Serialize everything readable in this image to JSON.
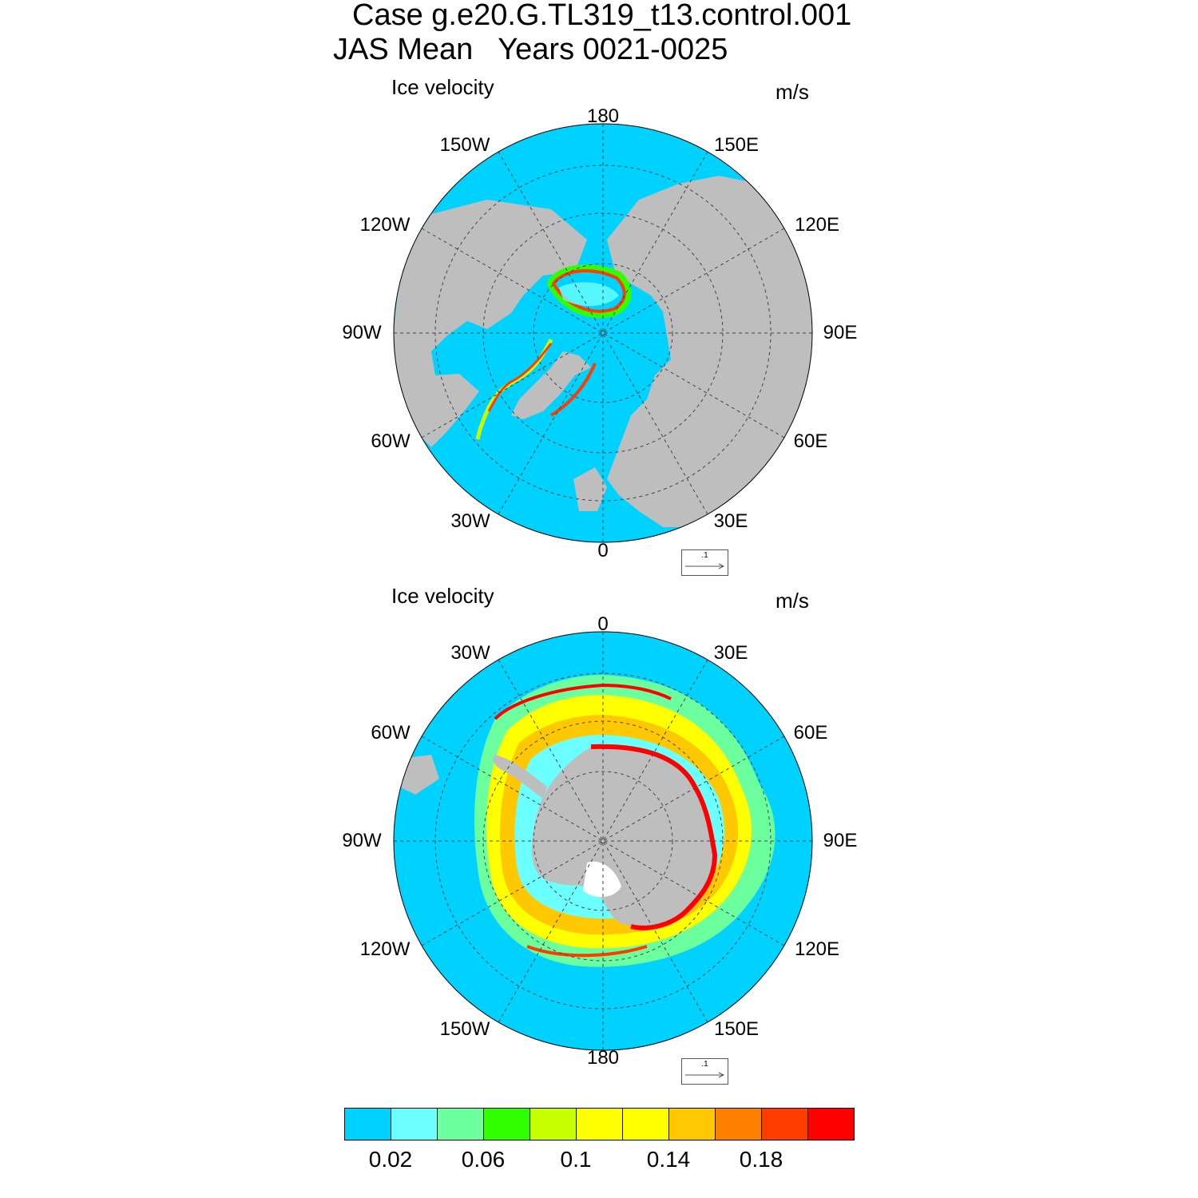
{
  "title": {
    "line1": "Case g.e20.G.TL319_t13.control.001",
    "line2": "JAS Mean   Years 0021-0025"
  },
  "panels": [
    {
      "label": "Ice velocity",
      "units": "m/s",
      "hemisphere": "north",
      "lon_labels": {
        "top": "180",
        "top_right": "150E",
        "right_upper": "120E",
        "right": "90E",
        "right_lower": "60E",
        "bottom_right": "30E",
        "bottom": "0",
        "bottom_left": "30W",
        "left_lower": "60W",
        "left": "90W",
        "left_upper": "120W",
        "top_left": "150W"
      },
      "ref_vector": ".1"
    },
    {
      "label": "Ice velocity",
      "units": "m/s",
      "hemisphere": "south",
      "lon_labels": {
        "top": "0",
        "top_right": "30E",
        "right_upper": "60E",
        "right": "90E",
        "right_lower": "120E",
        "bottom_right": "150E",
        "bottom": "180",
        "bottom_left": "150W",
        "left_lower": "120W",
        "left": "90W",
        "left_upper": "60W",
        "top_left": "30W"
      },
      "ref_vector": ".1"
    }
  ],
  "colorbar": {
    "colors": [
      "#00d2ff",
      "#6cffff",
      "#6cff9e",
      "#30ff00",
      "#c8ff00",
      "#ffff00",
      "#ffff00",
      "#ffc800",
      "#ff8000",
      "#ff3c00",
      "#ff0000"
    ],
    "tick_labels": [
      "0.02",
      "0.06",
      "0.1",
      "0.14",
      "0.18"
    ]
  },
  "colors": {
    "ocean": "#00d2ff",
    "land": "#bebebe",
    "grid": "#444444"
  }
}
